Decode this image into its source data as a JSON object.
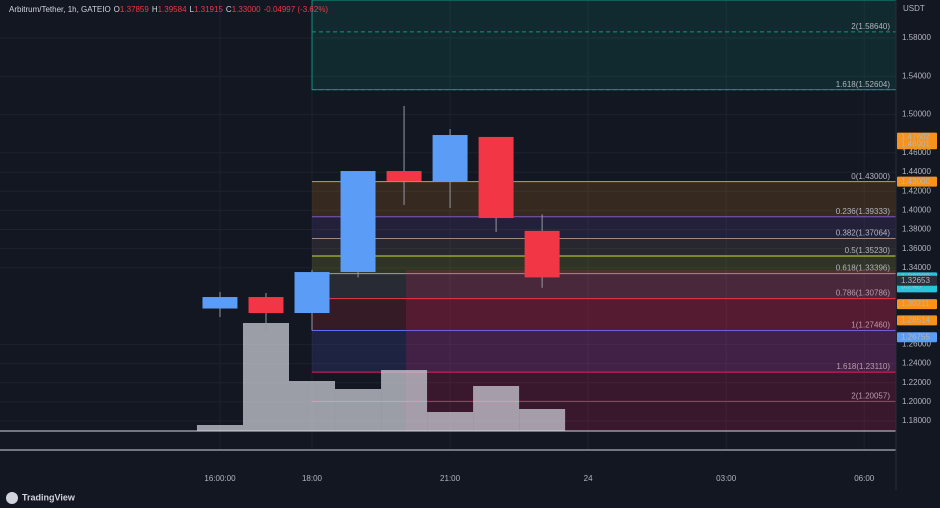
{
  "header": {
    "symbol": "Arbitrum/Tether, 1h, GATEIO",
    "fields": [
      {
        "key": "O",
        "value": "1.37859"
      },
      {
        "key": "H",
        "value": "1.39584"
      },
      {
        "key": "L",
        "value": "1.31915"
      },
      {
        "key": "C",
        "value": "1.33000"
      }
    ],
    "change": "-0.04997 (-3.62%)"
  },
  "currency": "USDT",
  "brand": "TradingView",
  "chart_data": {
    "type": "candlestick",
    "x": [
      16,
      17,
      18,
      19,
      20,
      21,
      22,
      23
    ],
    "open": [
      1.2975,
      1.3095,
      1.2928,
      1.3356,
      1.4411,
      1.4306,
      1.4767,
      1.37859
    ],
    "high": [
      1.3147,
      1.3137,
      1.338,
      1.4411,
      1.509,
      1.485,
      1.4767,
      1.39584
    ],
    "low": [
      1.2886,
      1.274,
      1.2746,
      1.33,
      1.4056,
      1.4025,
      1.3774,
      1.31915
    ],
    "close": [
      1.3095,
      1.2928,
      1.3356,
      1.4411,
      1.4306,
      1.4787,
      1.392,
      1.33
    ],
    "volume": [
      6,
      108,
      50,
      42,
      61,
      19,
      45,
      22
    ],
    "up_color": "#5b9cf6",
    "down_color": "#f23645",
    "volume_color": "#c9ccd4",
    "xlim": [
      11.22,
      30.69
    ],
    "xticks": [
      {
        "value": 16,
        "label": "16:00:00"
      },
      {
        "value": 18,
        "label": "18:00"
      },
      {
        "value": 21,
        "label": "21:00"
      },
      {
        "value": 24,
        "label": "24"
      },
      {
        "value": 27,
        "label": "03:00"
      },
      {
        "value": 30,
        "label": "06:00"
      }
    ],
    "ylim": [
      1.1602,
      1.6197
    ],
    "yticks": [
      {
        "value": 1.18,
        "label": "1.18000"
      },
      {
        "value": 1.2,
        "label": "1.20000"
      },
      {
        "value": 1.22,
        "label": "1.22000"
      },
      {
        "value": 1.24,
        "label": "1.24000"
      },
      {
        "value": 1.26,
        "label": "1.26000"
      },
      {
        "value": 1.34,
        "label": "1.34000"
      },
      {
        "value": 1.36,
        "label": "1.36000"
      },
      {
        "value": 1.38,
        "label": "1.38000"
      },
      {
        "value": 1.4,
        "label": "1.40000"
      },
      {
        "value": 1.42,
        "label": "1.42000"
      },
      {
        "value": 1.44,
        "label": "1.44000"
      },
      {
        "value": 1.46,
        "label": "1.46000"
      },
      {
        "value": 1.5,
        "label": "1.50000"
      },
      {
        "value": 1.54,
        "label": "1.54000"
      },
      {
        "value": 1.58,
        "label": "1.58000"
      }
    ],
    "grid": true,
    "fib_levels": [
      {
        "value": 1.43,
        "label": "0(1.43000)",
        "color": "#f7931a"
      },
      {
        "value": 1.39333,
        "label": "0.236(1.39333)",
        "color": "#7e57c2"
      },
      {
        "value": 1.37064,
        "label": "0.382(1.37064)",
        "color": "#a1887f"
      },
      {
        "value": 1.3523,
        "label": "0.5(1.35230)",
        "color": "#cddc39"
      },
      {
        "value": 1.33396,
        "label": "0.618(1.33396)",
        "color": "#9e9e9e"
      },
      {
        "value": 1.30786,
        "label": "0.786(1.30786)",
        "color": "#f23645"
      },
      {
        "value": 1.2746,
        "label": "1(1.27460)",
        "color": "#5b6cf6"
      },
      {
        "value": 1.2311,
        "label": "1.618(1.23110)",
        "color": "#e91e63"
      },
      {
        "value": 1.20057,
        "label": "2(1.20057)",
        "color": "#e91e63"
      }
    ],
    "fib_upper": [
      {
        "value": 1.5864,
        "label": "2(1.58640)",
        "color": "#089981"
      },
      {
        "value": 1.52604,
        "label": "1.618(1.52604)",
        "color": "#089981"
      }
    ],
    "price_labels": [
      {
        "value": 1.47602,
        "label": "1.47602",
        "color": "#f7931a"
      },
      {
        "value": 1.46901,
        "label": "1.46901",
        "color": "#f7931a"
      },
      {
        "value": 1.43,
        "label": "1.43000",
        "color": "#f7931a"
      },
      {
        "value": 1.33,
        "label": "1.33000",
        "color": "#26c6da",
        "note": "03:48"
      },
      {
        "value": 1.32653,
        "label": "1.32653",
        "color": "#2a2e39"
      },
      {
        "value": 1.30211,
        "label": "1.30211",
        "color": "#f7931a"
      },
      {
        "value": 1.28514,
        "label": "1.28514",
        "color": "#f7931a"
      },
      {
        "value": 1.26755,
        "label": "1.26755",
        "color": "#5b9cf6"
      }
    ]
  }
}
